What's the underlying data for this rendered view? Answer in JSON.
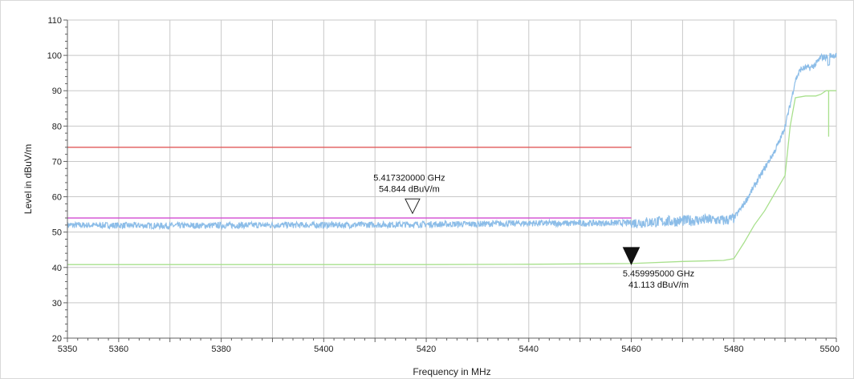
{
  "chart_data": {
    "type": "line",
    "title": "",
    "xlabel": "Frequency in MHz",
    "ylabel": "Level in dBuV/m",
    "xlim": [
      5350,
      5500
    ],
    "ylim": [
      20,
      110
    ],
    "x_ticks": [
      5350,
      5360,
      5380,
      5400,
      5420,
      5440,
      5460,
      5480,
      5500
    ],
    "x_grid": [
      5350,
      5360,
      5370,
      5380,
      5390,
      5400,
      5410,
      5420,
      5430,
      5440,
      5450,
      5460,
      5470,
      5480,
      5490,
      5500
    ],
    "y_ticks": [
      20,
      30,
      40,
      50,
      60,
      70,
      80,
      90,
      100,
      110
    ],
    "grid": true,
    "colors": {
      "peak_trace": "#8cbde8",
      "average_trace": "#a8e08c",
      "peak_limit": "#e05a5a",
      "average_limit": "#d24bd2",
      "grid": "#c8c8c8",
      "axis": "#606060"
    },
    "series": [
      {
        "role": "peak_trace",
        "x": [
          5350,
          5360,
          5370,
          5380,
          5390,
          5400,
          5410,
          5420,
          5430,
          5440,
          5450,
          5460,
          5465,
          5470,
          5475,
          5478,
          5480,
          5482,
          5484,
          5486,
          5488,
          5489,
          5490,
          5491,
          5492,
          5493,
          5494,
          5495,
          5496,
          5497,
          5498,
          5499,
          5500
        ],
        "y": [
          52.0,
          51.9,
          51.8,
          51.9,
          52.0,
          52.0,
          52.1,
          52.2,
          52.3,
          52.5,
          52.5,
          52.6,
          52.9,
          53.2,
          53.5,
          53.3,
          53.8,
          58,
          63,
          68,
          73,
          76,
          80,
          86,
          93,
          96,
          96.5,
          96.5,
          97.5,
          99.5,
          99.5,
          100,
          100
        ]
      },
      {
        "role": "average_trace",
        "x": [
          5350,
          5360,
          5380,
          5400,
          5420,
          5440,
          5460,
          5470,
          5478,
          5480,
          5482,
          5484,
          5486,
          5488,
          5490,
          5491,
          5492,
          5494,
          5496,
          5497,
          5498,
          5499,
          5500
        ],
        "y": [
          40.8,
          40.8,
          40.8,
          40.8,
          40.8,
          40.9,
          41.1,
          41.7,
          42.0,
          42.5,
          47,
          52,
          56,
          61,
          66,
          80,
          88,
          88.5,
          88.5,
          89,
          90,
          90,
          90
        ]
      },
      {
        "role": "peak_limit",
        "x": [
          5350,
          5460
        ],
        "y": [
          74,
          74
        ]
      },
      {
        "role": "average_limit",
        "x": [
          5350,
          5460
        ],
        "y": [
          54,
          54
        ]
      }
    ],
    "markers": [
      {
        "style": "hollow",
        "x": 5417.32,
        "y": 54.844,
        "freq_label": "5.417320000 GHz",
        "level_label": "54.844 dBuV/m"
      },
      {
        "style": "filled",
        "x": 5459.995,
        "y": 41.113,
        "freq_label": "5.459995000 GHz",
        "level_label": "41.113 dBuV/m"
      }
    ]
  }
}
